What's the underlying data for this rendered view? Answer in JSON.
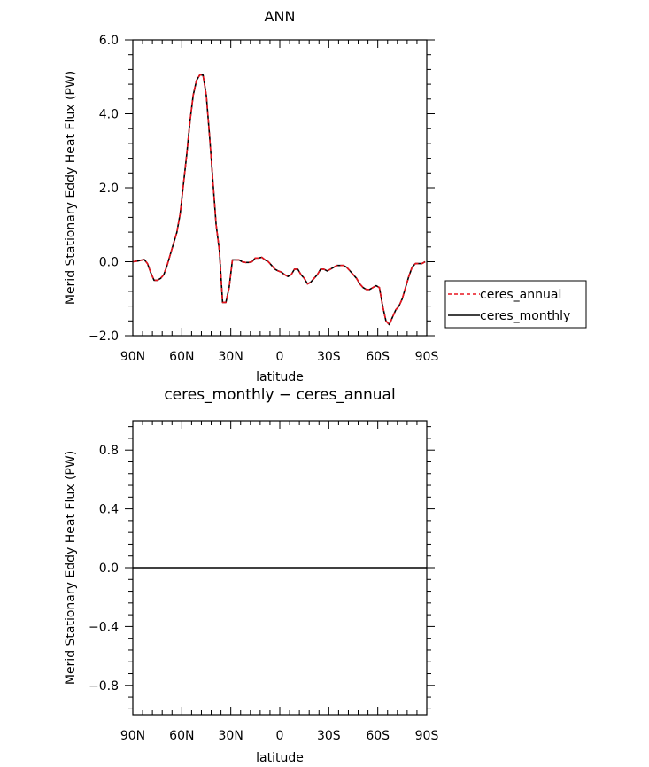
{
  "chart_data": [
    {
      "type": "line",
      "title": "ANN",
      "xlabel": "latitude",
      "ylabel": "Merid Stationary Eddy Heat Flux (PW)",
      "xlim": [
        90,
        -90
      ],
      "ylim": [
        -2.0,
        6.0
      ],
      "xticks": [
        90,
        60,
        30,
        0,
        -30,
        -60,
        -90
      ],
      "xtick_labels": [
        "90N",
        "60N",
        "30N",
        "0",
        "30S",
        "60S",
        "90S"
      ],
      "yticks": [
        -2.0,
        0.0,
        2.0,
        4.0,
        6.0
      ],
      "ytick_labels": [
        "−2.0",
        "0.0",
        "2.0",
        "4.0",
        "6.0"
      ],
      "legend_position": "right",
      "x": [
        90,
        87,
        85,
        83,
        81,
        79,
        77,
        75,
        73,
        71,
        69,
        67,
        65,
        63,
        61,
        59,
        57,
        55,
        53,
        51,
        49,
        47,
        45,
        43,
        41,
        39,
        37,
        35,
        33,
        31,
        29,
        27,
        25,
        23,
        21,
        19,
        17,
        15,
        13,
        11,
        9,
        7,
        5,
        3,
        1,
        -1,
        -3,
        -5,
        -7,
        -9,
        -11,
        -13,
        -15,
        -17,
        -19,
        -21,
        -23,
        -25,
        -27,
        -29,
        -31,
        -33,
        -35,
        -37,
        -39,
        -41,
        -43,
        -45,
        -47,
        -49,
        -51,
        -53,
        -55,
        -57,
        -59,
        -61,
        -63,
        -65,
        -67,
        -69,
        -71,
        -73,
        -75,
        -77,
        -79,
        -81,
        -83,
        -85,
        -87,
        -89
      ],
      "series": [
        {
          "name": "ceres_annual",
          "color": "#e8141e",
          "dash": "dashed",
          "values": [
            0.0,
            0.02,
            0.04,
            0.06,
            -0.05,
            -0.3,
            -0.5,
            -0.5,
            -0.45,
            -0.35,
            -0.1,
            0.2,
            0.5,
            0.8,
            1.3,
            2.1,
            2.9,
            3.8,
            4.5,
            4.9,
            5.05,
            5.05,
            4.5,
            3.4,
            2.2,
            1.0,
            0.3,
            -1.1,
            -1.1,
            -0.7,
            0.05,
            0.05,
            0.05,
            0.0,
            -0.02,
            -0.02,
            0.0,
            0.1,
            0.1,
            0.12,
            0.05,
            0.0,
            -0.1,
            -0.2,
            -0.25,
            -0.28,
            -0.35,
            -0.4,
            -0.35,
            -0.2,
            -0.2,
            -0.35,
            -0.45,
            -0.6,
            -0.55,
            -0.45,
            -0.35,
            -0.2,
            -0.2,
            -0.25,
            -0.2,
            -0.15,
            -0.1,
            -0.1,
            -0.1,
            -0.15,
            -0.25,
            -0.35,
            -0.45,
            -0.6,
            -0.7,
            -0.75,
            -0.75,
            -0.7,
            -0.65,
            -0.7,
            -1.2,
            -1.6,
            -1.7,
            -1.5,
            -1.3,
            -1.2,
            -1.0,
            -0.7,
            -0.4,
            -0.15,
            -0.05,
            -0.05,
            -0.05,
            0.0
          ]
        },
        {
          "name": "ceres_monthly",
          "color": "#000000",
          "dash": "solid",
          "values": [
            0.0,
            0.02,
            0.04,
            0.06,
            -0.05,
            -0.3,
            -0.5,
            -0.5,
            -0.45,
            -0.35,
            -0.1,
            0.2,
            0.5,
            0.8,
            1.3,
            2.1,
            2.9,
            3.8,
            4.5,
            4.9,
            5.05,
            5.05,
            4.5,
            3.4,
            2.2,
            1.0,
            0.3,
            -1.1,
            -1.1,
            -0.7,
            0.05,
            0.05,
            0.05,
            0.0,
            -0.02,
            -0.02,
            0.0,
            0.1,
            0.1,
            0.12,
            0.05,
            0.0,
            -0.1,
            -0.2,
            -0.25,
            -0.28,
            -0.35,
            -0.4,
            -0.35,
            -0.2,
            -0.2,
            -0.35,
            -0.45,
            -0.6,
            -0.55,
            -0.45,
            -0.35,
            -0.2,
            -0.2,
            -0.25,
            -0.2,
            -0.15,
            -0.1,
            -0.1,
            -0.1,
            -0.15,
            -0.25,
            -0.35,
            -0.45,
            -0.6,
            -0.7,
            -0.75,
            -0.75,
            -0.7,
            -0.65,
            -0.7,
            -1.2,
            -1.6,
            -1.7,
            -1.5,
            -1.3,
            -1.2,
            -1.0,
            -0.7,
            -0.4,
            -0.15,
            -0.05,
            -0.05,
            -0.05,
            0.0
          ]
        }
      ]
    },
    {
      "type": "line",
      "title": "ceres_monthly − ceres_annual",
      "xlabel": "latitude",
      "ylabel": "Merid Stationary Eddy Heat Flux (PW)",
      "xlim": [
        90,
        -90
      ],
      "ylim": [
        -1.0,
        1.0
      ],
      "xticks": [
        90,
        60,
        30,
        0,
        -30,
        -60,
        -90
      ],
      "xtick_labels": [
        "90N",
        "60N",
        "30N",
        "0",
        "30S",
        "60S",
        "90S"
      ],
      "yticks": [
        -0.8,
        -0.4,
        0.0,
        0.4,
        0.8
      ],
      "ytick_labels": [
        "−0.8",
        "−0.4",
        "0.0",
        "0.4",
        "0.8"
      ],
      "x": [
        90,
        -90
      ],
      "series": [
        {
          "color": "#000000",
          "dash": "solid",
          "values": [
            0.0,
            0.0
          ]
        }
      ]
    }
  ]
}
